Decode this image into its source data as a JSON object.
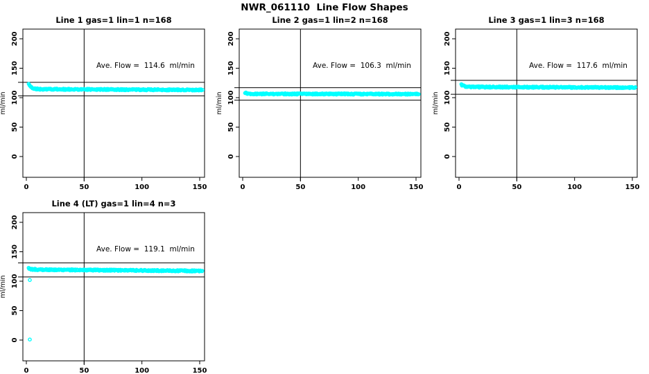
{
  "figure": {
    "title": "NWR_061110  Line Flow Shapes",
    "background": "#ffffff",
    "axis_color": "#000000",
    "point_color": "#00ffff",
    "y_axis_label": "ml/min",
    "x_ticks": [
      0,
      50,
      100,
      150
    ],
    "y_ticks": [
      0,
      50,
      100,
      150,
      200
    ],
    "xlim": [
      -3,
      154
    ],
    "ylim": [
      -35,
      217
    ]
  },
  "chart_data": [
    {
      "type": "scatter",
      "title": "Line 1 gas=1 lin=1 n=168",
      "line": 1,
      "gas": 1,
      "lin": 1,
      "n": 168,
      "annotation": "Ave. Flow =  114.6  ml/min",
      "ave_flow_ml_min": 114.6,
      "vline_x": 50,
      "ref_lines": [
        126.1,
        103.1
      ],
      "x_start": 2,
      "x_end": 152,
      "flow_start": 123.5,
      "flow_settle": 114.5,
      "flow_end": 113.1,
      "outliers": [],
      "seed": 11
    },
    {
      "type": "scatter",
      "title": "Line 2 gas=1 lin=2 n=168",
      "line": 2,
      "gas": 1,
      "lin": 2,
      "n": 168,
      "annotation": "Ave. Flow =  106.3  ml/min",
      "ave_flow_ml_min": 106.3,
      "vline_x": 50,
      "ref_lines": [
        116.9,
        95.7
      ],
      "x_start": 2,
      "x_end": 152,
      "flow_start": 108.5,
      "flow_settle": 106.5,
      "flow_end": 106.0,
      "outliers": [],
      "seed": 22
    },
    {
      "type": "scatter",
      "title": "Line 3 gas=1 lin=3 n=168",
      "line": 3,
      "gas": 1,
      "lin": 3,
      "n": 168,
      "annotation": "Ave. Flow =  117.6  ml/min",
      "ave_flow_ml_min": 117.6,
      "vline_x": 50,
      "ref_lines": [
        129.4,
        105.8
      ],
      "x_start": 2,
      "x_end": 152,
      "flow_start": 122.5,
      "flow_settle": 118.2,
      "flow_end": 117.1,
      "outliers": [],
      "seed": 33
    },
    {
      "type": "scatter",
      "title": "Line 4 (LT) gas=1 lin=4 n=3",
      "line": 4,
      "gas": 1,
      "lin": 4,
      "n": 3,
      "annotation": "Ave. Flow =  119.1  ml/min",
      "ave_flow_ml_min": 119.1,
      "vline_x": 50,
      "ref_lines": [
        131.0,
        107.2
      ],
      "x_start": 2,
      "x_end": 152,
      "flow_start": 122.0,
      "flow_settle": 119.8,
      "flow_end": 117.4,
      "outliers": [
        [
          3,
          102
        ],
        [
          3,
          1
        ]
      ],
      "seed": 44
    }
  ]
}
